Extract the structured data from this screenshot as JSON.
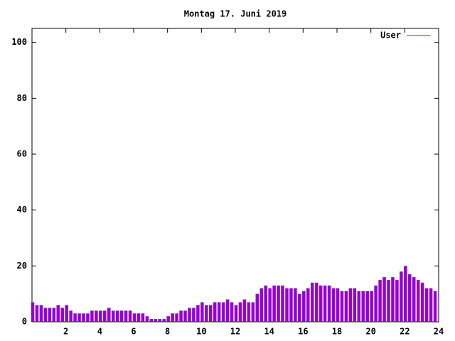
{
  "chart_data": {
    "type": "impulse",
    "title": "Montag 17. Juni 2019",
    "x": [
      0,
      0.25,
      0.5,
      0.75,
      1,
      1.25,
      1.5,
      1.75,
      2,
      2.25,
      2.5,
      2.75,
      3,
      3.25,
      3.5,
      3.75,
      4,
      4.25,
      4.5,
      4.75,
      5,
      5.25,
      5.5,
      5.75,
      6,
      6.25,
      6.5,
      6.75,
      7,
      7.25,
      7.5,
      7.75,
      8,
      8.25,
      8.5,
      8.75,
      9,
      9.25,
      9.5,
      9.75,
      10,
      10.25,
      10.5,
      10.75,
      11,
      11.25,
      11.5,
      11.75,
      12,
      12.25,
      12.5,
      12.75,
      13,
      13.25,
      13.5,
      13.75,
      14,
      14.25,
      14.5,
      14.75,
      15,
      15.25,
      15.5,
      15.75,
      16,
      16.25,
      16.5,
      16.75,
      17,
      17.25,
      17.5,
      17.75,
      18,
      18.25,
      18.5,
      18.75,
      19,
      19.25,
      19.5,
      19.75,
      20,
      20.25,
      20.5,
      20.75,
      21,
      21.25,
      21.5,
      21.75,
      22,
      22.25,
      22.5,
      22.75,
      23,
      23.25,
      23.5,
      23.75
    ],
    "series": [
      {
        "name": "User",
        "color": "#9400d3",
        "values": [
          7,
          6,
          6,
          5,
          5,
          5,
          6,
          5,
          6,
          4,
          3,
          3,
          3,
          3,
          4,
          4,
          4,
          4,
          5,
          4,
          4,
          4,
          4,
          4,
          3,
          3,
          3,
          2,
          1,
          1,
          1,
          1,
          2,
          3,
          3,
          4,
          4,
          5,
          5,
          6,
          7,
          6,
          6,
          7,
          7,
          7,
          8,
          7,
          6,
          7,
          8,
          7,
          7,
          10,
          12,
          13,
          12,
          13,
          13,
          13,
          12,
          12,
          12,
          10,
          11,
          12,
          14,
          14,
          13,
          13,
          13,
          12,
          12,
          11,
          11,
          12,
          12,
          11,
          11,
          11,
          11,
          13,
          15,
          16,
          15,
          16,
          15,
          18,
          20,
          17,
          16,
          15,
          14,
          12,
          12,
          11
        ]
      }
    ],
    "xlim": [
      0,
      24
    ],
    "xticks": [
      2,
      4,
      6,
      8,
      10,
      12,
      14,
      16,
      18,
      20,
      22,
      24
    ],
    "ylim": [
      0,
      105
    ],
    "yticks": [
      0,
      20,
      40,
      60,
      80,
      100
    ],
    "legend": "top-right"
  }
}
